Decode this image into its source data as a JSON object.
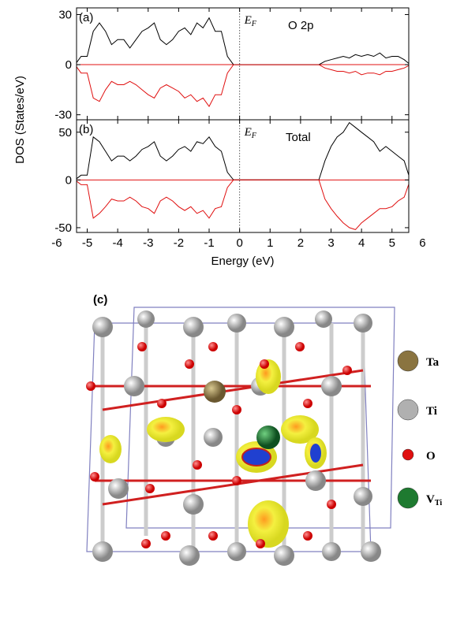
{
  "chart_data": [
    {
      "type": "line",
      "panel_label": "(a)",
      "annotation": "O 2p",
      "fermi_label": {
        "main": "E",
        "sub": "F"
      },
      "fermi_level": 0,
      "ylabel": "DOS (States/eV)",
      "x": [
        -5.4,
        -5.2,
        -5.0,
        -4.8,
        -4.6,
        -4.4,
        -4.2,
        -4.0,
        -3.8,
        -3.6,
        -3.4,
        -3.2,
        -3.0,
        -2.8,
        -2.6,
        -2.4,
        -2.2,
        -2.0,
        -1.8,
        -1.6,
        -1.4,
        -1.2,
        -1.0,
        -0.8,
        -0.6,
        -0.4,
        -0.2,
        0,
        0.2,
        0.4,
        0.6,
        0.8,
        1.0,
        1.2,
        1.4,
        1.6,
        1.8,
        2.0,
        2.2,
        2.4,
        2.6,
        2.8,
        3.0,
        3.2,
        3.4,
        3.6,
        3.8,
        4.0,
        4.2,
        4.4,
        4.6,
        4.8,
        5.0,
        5.2,
        5.4,
        5.6
      ],
      "series": [
        {
          "color": "#000000",
          "values": [
            0,
            5,
            5,
            20,
            25,
            20,
            12,
            15,
            15,
            10,
            15,
            20,
            22,
            25,
            15,
            12,
            15,
            20,
            22,
            18,
            25,
            22,
            28,
            20,
            20,
            5,
            0,
            0,
            0,
            0,
            0,
            0,
            0,
            0,
            0,
            0,
            0,
            0,
            0,
            0,
            0,
            2,
            3,
            4,
            5,
            4,
            6,
            5,
            6,
            5,
            7,
            4,
            5,
            5,
            3,
            0
          ]
        },
        {
          "color": "#e01010",
          "values": [
            0,
            -5,
            -5,
            -20,
            -22,
            -15,
            -10,
            -12,
            -12,
            -10,
            -12,
            -15,
            -18,
            -20,
            -14,
            -12,
            -14,
            -16,
            -20,
            -18,
            -22,
            -20,
            -25,
            -18,
            -18,
            -5,
            0,
            0,
            0,
            0,
            0,
            0,
            0,
            0,
            0,
            0,
            0,
            0,
            0,
            0,
            0,
            -2,
            -3,
            -4,
            -4,
            -5,
            -4,
            -6,
            -5,
            -5,
            -6,
            -4,
            -4,
            -3,
            -2,
            0
          ]
        }
      ],
      "xlim": [
        -5.35,
        5.55
      ],
      "xticks": [
        -6,
        -5,
        -4,
        -3,
        -2,
        -1,
        0,
        1,
        2,
        3,
        4,
        5,
        6
      ],
      "ylim": [
        -33,
        34
      ],
      "yticks": [
        -30,
        0,
        30
      ]
    },
    {
      "type": "line",
      "panel_label": "(b)",
      "annotation": "Total",
      "fermi_label": {
        "main": "E",
        "sub": "F"
      },
      "fermi_level": 0,
      "xlabel": "Energy (eV)",
      "x": [
        -5.4,
        -5.2,
        -5.0,
        -4.8,
        -4.6,
        -4.4,
        -4.2,
        -4.0,
        -3.8,
        -3.6,
        -3.4,
        -3.2,
        -3.0,
        -2.8,
        -2.6,
        -2.4,
        -2.2,
        -2.0,
        -1.8,
        -1.6,
        -1.4,
        -1.2,
        -1.0,
        -0.8,
        -0.6,
        -0.4,
        -0.2,
        0,
        0.2,
        0.4,
        0.6,
        0.8,
        1.0,
        1.2,
        1.4,
        1.6,
        1.8,
        2.0,
        2.2,
        2.4,
        2.6,
        2.8,
        3.0,
        3.2,
        3.4,
        3.6,
        3.8,
        4.0,
        4.2,
        4.4,
        4.6,
        4.8,
        5.0,
        5.2,
        5.4,
        5.6
      ],
      "series": [
        {
          "color": "#000000",
          "values": [
            0,
            5,
            5,
            45,
            40,
            30,
            20,
            25,
            25,
            20,
            25,
            32,
            35,
            40,
            25,
            20,
            25,
            32,
            35,
            30,
            40,
            38,
            45,
            35,
            30,
            8,
            0,
            0,
            0,
            0,
            0,
            0,
            0,
            0,
            0,
            0,
            0,
            0,
            0,
            0,
            0,
            20,
            35,
            45,
            50,
            60,
            55,
            50,
            45,
            40,
            30,
            35,
            30,
            25,
            20,
            0
          ]
        },
        {
          "color": "#e01010",
          "values": [
            0,
            -5,
            -5,
            -40,
            -35,
            -28,
            -20,
            -22,
            -22,
            -18,
            -22,
            -28,
            -30,
            -35,
            -22,
            -18,
            -22,
            -28,
            -32,
            -28,
            -35,
            -32,
            -40,
            -30,
            -28,
            -8,
            0,
            0,
            0,
            0,
            0,
            0,
            0,
            0,
            0,
            0,
            0,
            0,
            0,
            0,
            0,
            -20,
            -30,
            -38,
            -45,
            -50,
            -52,
            -45,
            -40,
            -35,
            -30,
            -30,
            -28,
            -22,
            -18,
            0
          ]
        }
      ],
      "xlim": [
        -5.35,
        5.55
      ],
      "xticks": [
        -6,
        -5,
        -4,
        -3,
        -2,
        -1,
        0,
        1,
        2,
        3,
        4,
        5,
        6
      ],
      "ylim": [
        -55,
        63
      ],
      "yticks": [
        -50,
        0,
        50
      ]
    }
  ],
  "structure": {
    "label": "(c)",
    "legend": [
      {
        "symbol": "Ta",
        "color": "#8a7440"
      },
      {
        "symbol": "Ti",
        "color": "#b0b0b0"
      },
      {
        "symbol": "O",
        "color": "#e01010"
      },
      {
        "symbol": "V",
        "sub": "Ti",
        "color": "#1e7a30"
      }
    ]
  }
}
